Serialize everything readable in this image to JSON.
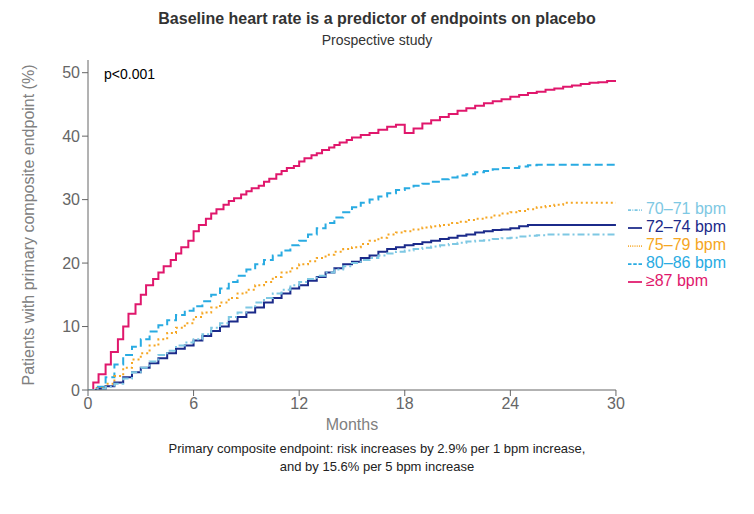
{
  "chart_data": {
    "type": "line",
    "title": "Baseline heart rate is a predictor of endpoints on placebo",
    "subtitle": "Prospective study",
    "xlabel": "Months",
    "ylabel": "Patients with primary composite endpoint (%)",
    "annotations": [
      "p<0.001"
    ],
    "footnote": [
      "Primary composite endpoint: risk increases by 2.9% per 1 bpm increase,",
      "and by 15.6% per 5 bpm increase"
    ],
    "xlim": [
      0,
      30
    ],
    "ylim": [
      0,
      52
    ],
    "xticks": [
      0,
      6,
      12,
      18,
      24,
      30
    ],
    "yticks": [
      0,
      10,
      20,
      30,
      40,
      50
    ],
    "grid": false,
    "legend": "right",
    "series": [
      {
        "name": "≥87 bpm",
        "color": "#E0176C",
        "line_style": "solid",
        "x": [
          0,
          0.3,
          0.6,
          1.0,
          1.3,
          1.7,
          2.0,
          2.3,
          2.7,
          3.0,
          3.3,
          3.7,
          4.0,
          4.3,
          4.7,
          5.0,
          5.3,
          5.7,
          6.0,
          6.3,
          6.7,
          7.0,
          7.3,
          7.7,
          8.0,
          8.3,
          8.7,
          9.0,
          9.3,
          9.7,
          10.0,
          10.3,
          10.7,
          11.0,
          11.3,
          11.7,
          12.0,
          12.3,
          12.7,
          13.0,
          13.3,
          13.7,
          14.0,
          14.3,
          14.7,
          15.0,
          15.5,
          16.0,
          16.5,
          17.0,
          17.5,
          18.0,
          18.5,
          19.0,
          19.5,
          20.0,
          20.5,
          21.0,
          21.5,
          22.0,
          22.5,
          23.0,
          23.5,
          24.0,
          24.5,
          25.0,
          25.5,
          26.0,
          26.5,
          27.0,
          27.5,
          28.0,
          28.5,
          29.0,
          29.5,
          30.0
        ],
        "values": [
          0,
          1.2,
          2.5,
          4.0,
          6.0,
          8.0,
          10.0,
          12.0,
          13.5,
          15.0,
          16.5,
          17.5,
          18.5,
          19.5,
          20.5,
          21.5,
          22.5,
          23.5,
          25.0,
          26.0,
          27.0,
          27.8,
          28.5,
          29.2,
          29.8,
          30.2,
          30.8,
          31.3,
          31.8,
          32.2,
          32.8,
          33.3,
          34.0,
          34.5,
          35.0,
          35.3,
          36.0,
          36.5,
          37.0,
          37.3,
          37.8,
          38.2,
          38.6,
          39.0,
          39.4,
          39.8,
          40.2,
          40.5,
          41.0,
          41.5,
          41.8,
          40.5,
          41.2,
          42.0,
          42.5,
          43.0,
          43.5,
          44.0,
          44.4,
          44.8,
          45.2,
          45.5,
          45.8,
          46.2,
          46.5,
          46.8,
          47.0,
          47.3,
          47.5,
          47.8,
          48.0,
          48.2,
          48.4,
          48.5,
          48.7,
          48.8
        ]
      },
      {
        "name": "80–86 bpm",
        "color": "#29ABE2",
        "line_style": "dashed",
        "x": [
          0,
          0.5,
          1.0,
          1.5,
          2.0,
          2.5,
          3.0,
          3.5,
          4.0,
          4.5,
          5.0,
          5.5,
          6.0,
          6.5,
          7.0,
          7.5,
          8.0,
          8.5,
          9.0,
          9.5,
          10.0,
          10.5,
          11.0,
          11.5,
          12.0,
          12.5,
          13.0,
          13.5,
          14.0,
          14.5,
          15.0,
          15.5,
          16.0,
          16.5,
          17.0,
          17.5,
          18.0,
          18.5,
          19.0,
          19.5,
          20.0,
          20.5,
          21.0,
          21.5,
          22.0,
          22.5,
          23.0,
          23.5,
          24.0,
          24.5,
          25.0,
          25.5,
          26.0,
          26.5,
          27.0,
          27.5,
          28.0,
          28.5,
          29.0,
          29.5,
          30.0
        ],
        "values": [
          0,
          0.5,
          2.0,
          4.0,
          5.5,
          6.8,
          8.0,
          9.2,
          10.2,
          11.0,
          11.8,
          12.5,
          13.2,
          14.0,
          15.0,
          16.0,
          17.0,
          18.0,
          19.0,
          19.8,
          20.5,
          21.2,
          22.0,
          22.8,
          23.5,
          24.5,
          25.5,
          26.3,
          27.2,
          28.0,
          28.8,
          29.5,
          30.0,
          30.5,
          31.0,
          31.5,
          31.8,
          32.2,
          32.5,
          32.8,
          33.2,
          33.5,
          33.8,
          34.0,
          34.3,
          34.5,
          34.8,
          35.0,
          35.0,
          35.2,
          35.4,
          35.5,
          35.5,
          35.5,
          35.5,
          35.5,
          35.5,
          35.5,
          35.5,
          35.5,
          35.5
        ]
      },
      {
        "name": "75–79 bpm",
        "color": "#F5A623",
        "line_style": "dotted",
        "x": [
          0,
          0.5,
          1.0,
          1.5,
          2.0,
          2.5,
          3.0,
          3.5,
          4.0,
          4.5,
          5.0,
          5.5,
          6.0,
          6.5,
          7.0,
          7.5,
          8.0,
          8.5,
          9.0,
          9.5,
          10.0,
          10.5,
          11.0,
          11.5,
          12.0,
          12.5,
          13.0,
          13.5,
          14.0,
          14.5,
          15.0,
          15.5,
          16.0,
          16.5,
          17.0,
          17.5,
          18.0,
          18.5,
          19.0,
          19.5,
          20.0,
          20.5,
          21.0,
          21.5,
          22.0,
          22.5,
          23.0,
          23.5,
          24.0,
          24.5,
          25.0,
          25.5,
          26.0,
          26.5,
          27.0,
          27.5,
          28.0,
          28.5,
          29.0,
          29.5,
          30.0
        ],
        "values": [
          0,
          0.3,
          1.0,
          2.2,
          3.5,
          4.8,
          5.8,
          7.0,
          8.0,
          9.0,
          9.8,
          10.5,
          11.5,
          12.2,
          13.0,
          13.8,
          14.5,
          15.2,
          15.8,
          16.5,
          17.0,
          17.8,
          18.5,
          19.2,
          19.8,
          20.3,
          20.8,
          21.3,
          21.8,
          22.2,
          22.5,
          23.0,
          23.5,
          24.0,
          24.5,
          24.8,
          25.0,
          25.3,
          25.6,
          25.8,
          26.0,
          26.3,
          26.5,
          26.8,
          27.0,
          27.2,
          27.5,
          27.8,
          28.0,
          28.2,
          28.5,
          28.8,
          29.0,
          29.2,
          29.5,
          29.5,
          29.5,
          29.5,
          29.5,
          29.5,
          29.5
        ]
      },
      {
        "name": "72–74 bpm",
        "color": "#1B2A8A",
        "line_style": "solid",
        "x": [
          0,
          0.5,
          1.0,
          1.5,
          2.0,
          2.5,
          3.0,
          3.5,
          4.0,
          4.5,
          5.0,
          5.5,
          6.0,
          6.5,
          7.0,
          7.5,
          8.0,
          8.5,
          9.0,
          9.5,
          10.0,
          10.5,
          11.0,
          11.5,
          12.0,
          12.5,
          13.0,
          13.5,
          14.0,
          14.5,
          15.0,
          15.5,
          16.0,
          16.5,
          17.0,
          17.5,
          18.0,
          18.5,
          19.0,
          19.5,
          20.0,
          20.5,
          21.0,
          21.5,
          22.0,
          22.5,
          23.0,
          23.5,
          24.0,
          24.5,
          25.0,
          25.5,
          26.0,
          26.5,
          27.0,
          27.5,
          28.0,
          28.5,
          29.0,
          29.5,
          30.0
        ],
        "values": [
          0,
          0.2,
          0.6,
          1.2,
          2.0,
          2.8,
          3.5,
          4.2,
          5.0,
          5.8,
          6.5,
          7.0,
          7.8,
          8.5,
          9.3,
          10.0,
          10.8,
          11.5,
          12.2,
          13.0,
          13.8,
          14.5,
          15.2,
          16.0,
          16.5,
          17.2,
          17.8,
          18.5,
          19.2,
          19.8,
          20.2,
          20.8,
          21.2,
          21.8,
          22.2,
          22.5,
          22.8,
          23.0,
          23.3,
          23.5,
          23.8,
          24.0,
          24.3,
          24.5,
          24.8,
          25.0,
          25.2,
          25.3,
          25.5,
          25.8,
          26.0,
          26.0,
          26.0,
          26.0,
          26.0,
          26.0,
          26.0,
          26.0,
          26.0,
          26.0,
          26.0
        ]
      },
      {
        "name": "70–71 bpm",
        "color": "#7EC8E3",
        "line_style": "dashdot",
        "x": [
          0,
          0.5,
          1.0,
          1.5,
          2.0,
          2.5,
          3.0,
          3.5,
          4.0,
          4.5,
          5.0,
          5.5,
          6.0,
          6.5,
          7.0,
          7.5,
          8.0,
          8.5,
          9.0,
          9.5,
          10.0,
          10.5,
          11.0,
          11.5,
          12.0,
          12.5,
          13.0,
          13.5,
          14.0,
          14.5,
          15.0,
          15.5,
          16.0,
          16.5,
          17.0,
          17.5,
          18.0,
          18.5,
          19.0,
          19.5,
          20.0,
          20.5,
          21.0,
          21.5,
          22.0,
          22.5,
          23.0,
          23.5,
          24.0,
          24.5,
          25.0,
          25.5,
          26.0,
          26.5,
          27.0,
          27.5,
          28.0,
          28.5,
          29.0,
          29.5,
          30.0
        ],
        "values": [
          0,
          0.2,
          0.5,
          1.0,
          1.8,
          2.8,
          3.5,
          4.5,
          5.5,
          6.2,
          7.0,
          7.5,
          8.0,
          8.8,
          9.8,
          10.5,
          11.5,
          12.2,
          13.0,
          13.8,
          14.5,
          15.2,
          15.8,
          16.5,
          17.0,
          17.5,
          18.0,
          18.5,
          19.0,
          19.5,
          20.0,
          20.5,
          20.8,
          21.2,
          21.5,
          21.8,
          22.0,
          22.2,
          22.4,
          22.6,
          22.8,
          23.0,
          23.2,
          23.4,
          23.5,
          23.6,
          23.8,
          23.9,
          24.0,
          24.2,
          24.3,
          24.4,
          24.5,
          24.5,
          24.5,
          24.5,
          24.5,
          24.5,
          24.5,
          24.5,
          24.5
        ]
      }
    ]
  }
}
